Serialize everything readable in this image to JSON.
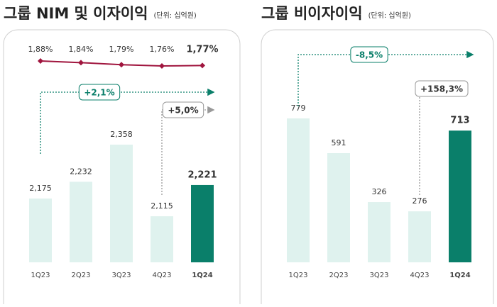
{
  "chart_data": [
    {
      "type": "bar_line",
      "title": "그룹 NIM 및 이자이익",
      "subtitle": "(단위: 십억원)",
      "categories": [
        "1Q23",
        "2Q23",
        "3Q23",
        "4Q23",
        "1Q24"
      ],
      "values": [
        2175,
        2232,
        2358,
        2115,
        2221
      ],
      "value_labels": [
        "2,175",
        "2,232",
        "2,358",
        "2,115",
        "2,221"
      ],
      "colors": [
        "#dff2ee",
        "#dff2ee",
        "#dff2ee",
        "#dff2ee",
        "#0a7f6a"
      ],
      "line": {
        "values": [
          1.88,
          1.84,
          1.79,
          1.76,
          1.77
        ],
        "value_labels": [
          "1,88%",
          "1,84%",
          "1,79%",
          "1,76%",
          "1,77%"
        ],
        "color": "#a0153e"
      },
      "annotations": [
        {
          "text": "+2,1%",
          "color": "#0a7f6a"
        },
        {
          "text": "+5,0%",
          "color": "#999999"
        }
      ]
    },
    {
      "type": "bar",
      "title": "그룹 비이자이익",
      "subtitle": "(단위: 십억원)",
      "categories": [
        "1Q23",
        "2Q23",
        "3Q23",
        "4Q23",
        "1Q24"
      ],
      "values": [
        779,
        591,
        326,
        276,
        713
      ],
      "value_labels": [
        "779",
        "591",
        "326",
        "276",
        "713"
      ],
      "colors": [
        "#dff2ee",
        "#dff2ee",
        "#dff2ee",
        "#dff2ee",
        "#0a7f6a"
      ],
      "annotations": [
        {
          "text": "-8,5%",
          "color": "#0a7f6a"
        },
        {
          "text": "+158,3%",
          "color": "#999999"
        }
      ]
    }
  ]
}
